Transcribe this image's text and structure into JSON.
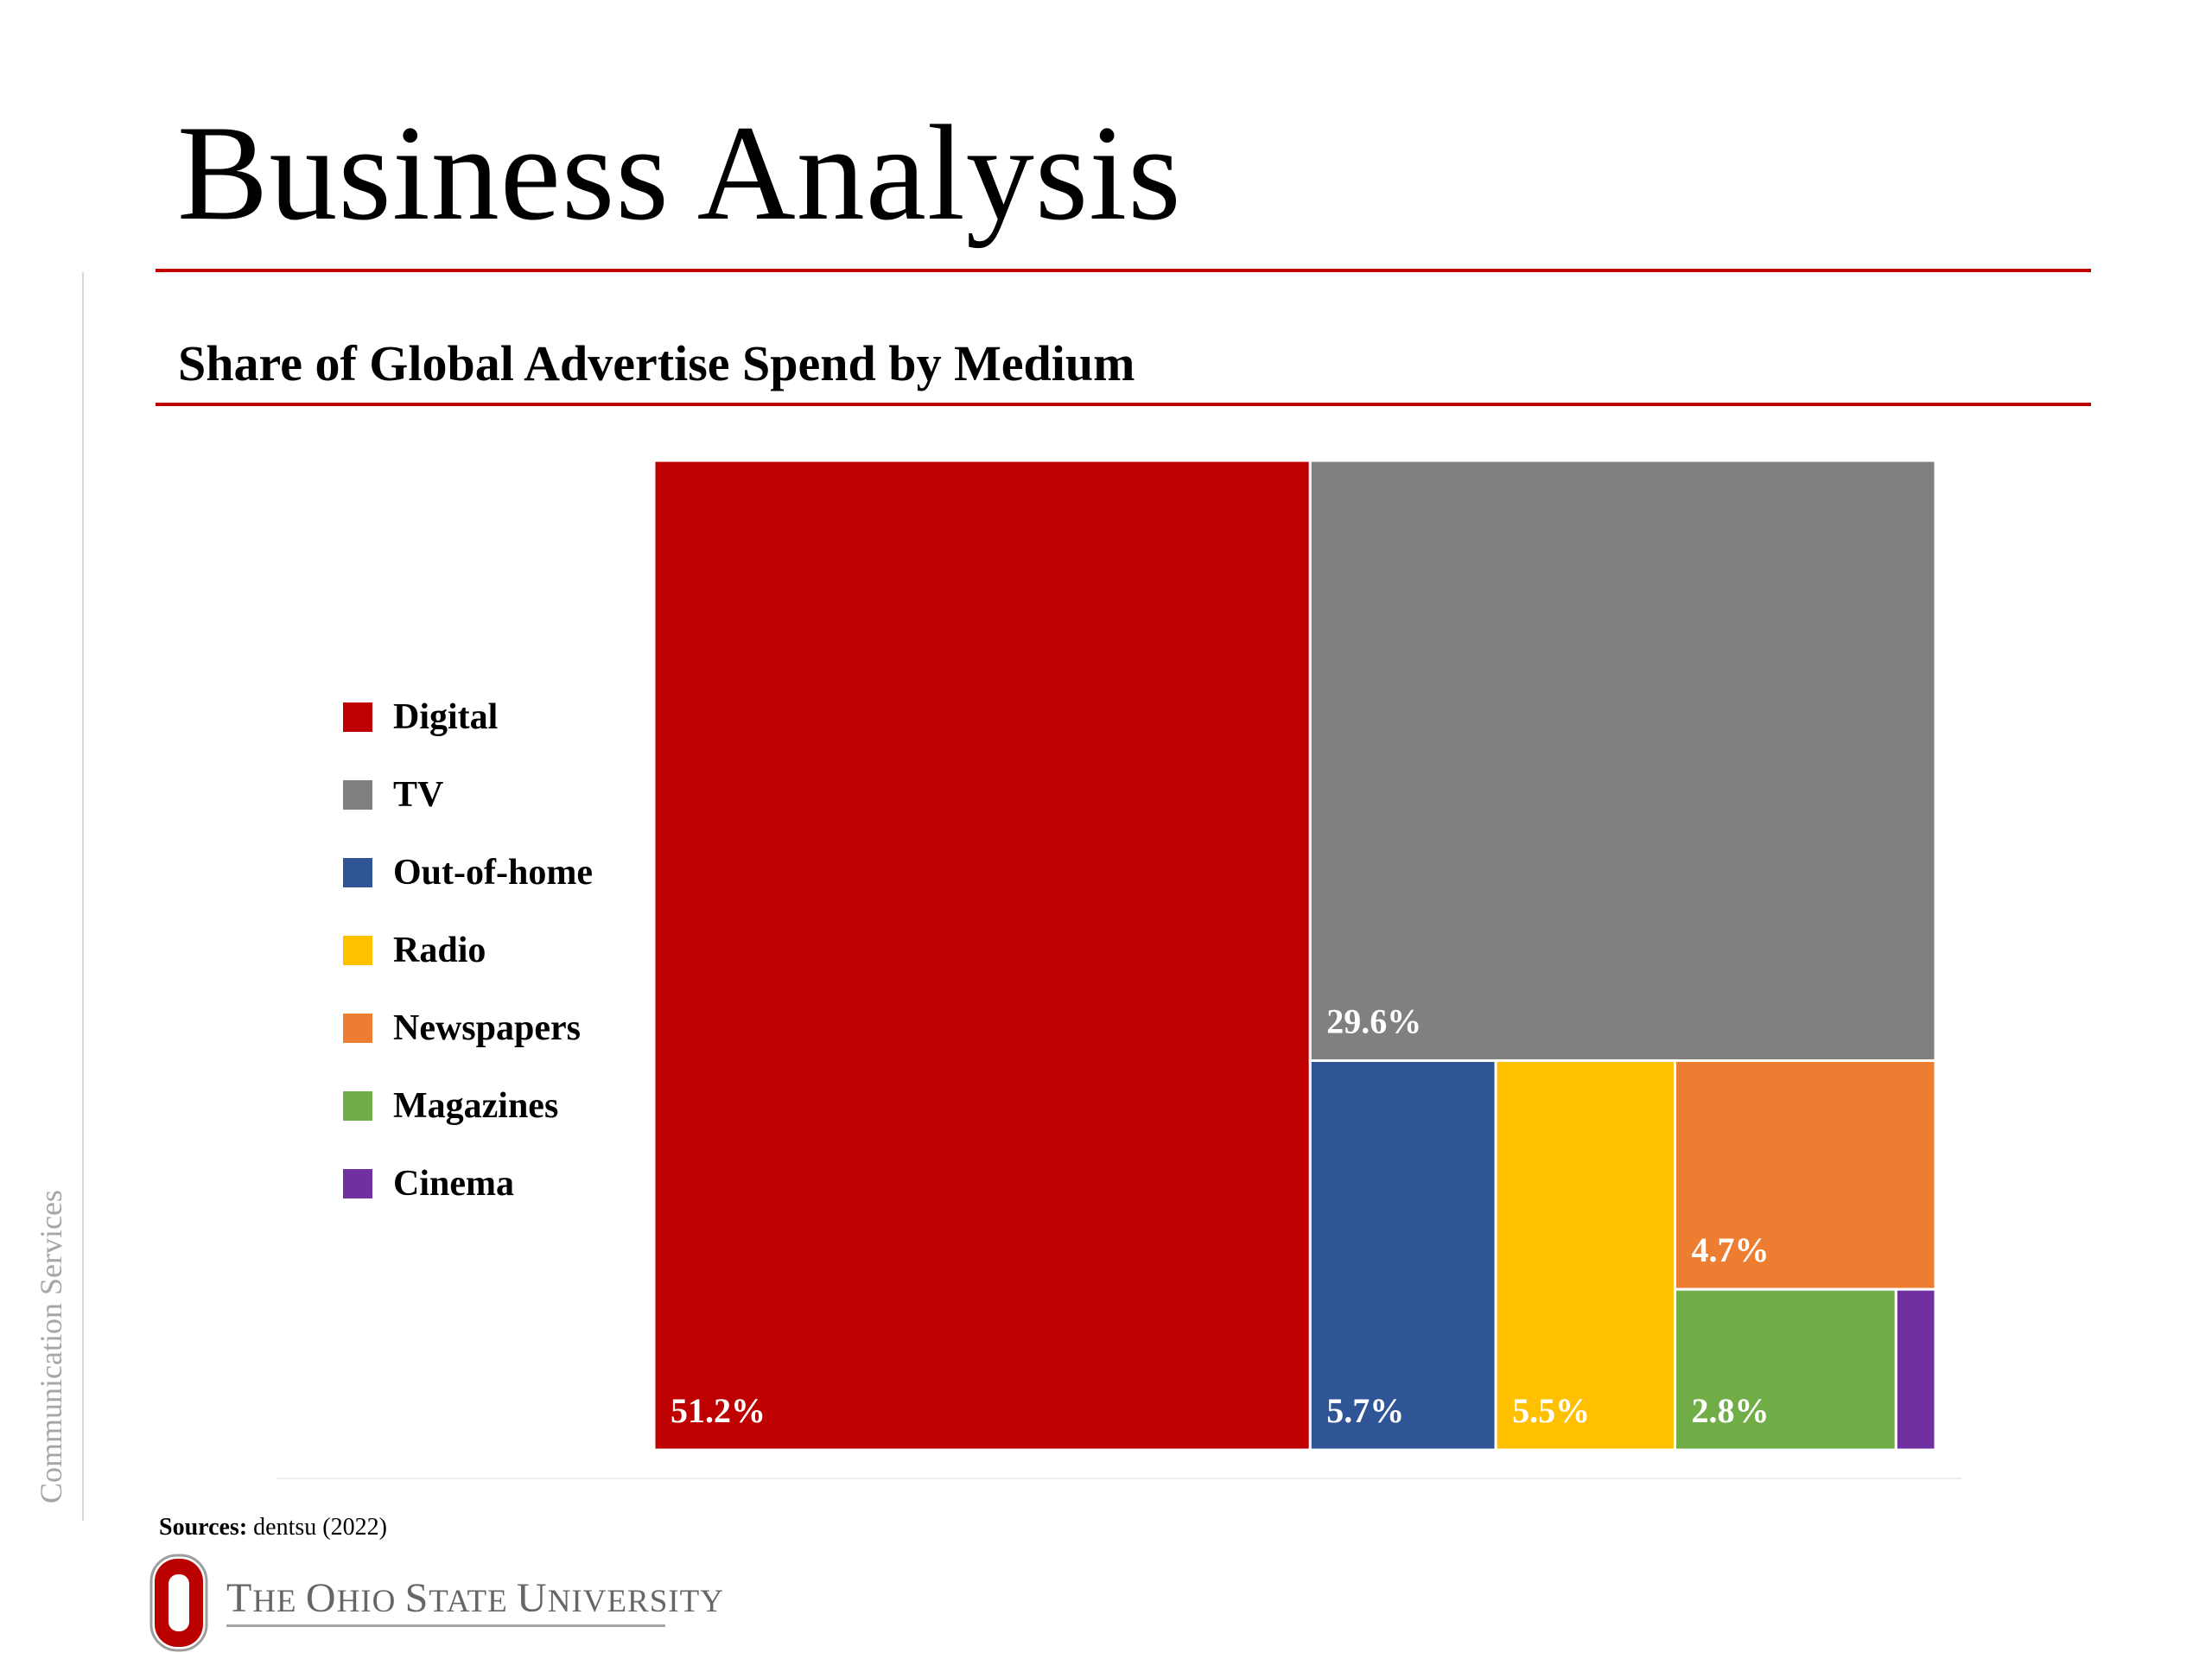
{
  "slide": {
    "title": "Business Analysis",
    "side_label": "Communication Services",
    "source_label": "Sources:",
    "source_text": "dentsu (2022)",
    "logo_text_lead1": "T",
    "logo_text_rest1": "HE ",
    "logo_text_lead2": "O",
    "logo_text_rest2": "HIO ",
    "logo_text_lead3": "S",
    "logo_text_rest3": "TATE ",
    "logo_text_lead4": "U",
    "logo_text_rest4": "NIVERSITY",
    "accent_color": "#c00000"
  },
  "chart_data": {
    "type": "treemap",
    "title": "Share of Global Advertise Spend by Medium",
    "legend_position": "left",
    "series": [
      {
        "name": "Digital",
        "value": 51.2,
        "label": "51.2%",
        "color": "#bf0000"
      },
      {
        "name": "TV",
        "value": 29.6,
        "label": "29.6%",
        "color": "#808080"
      },
      {
        "name": "Out-of-home",
        "value": 5.7,
        "label": "5.7%",
        "color": "#2f5597"
      },
      {
        "name": "Radio",
        "value": 5.5,
        "label": "5.5%",
        "color": "#ffc000"
      },
      {
        "name": "Newspapers",
        "value": 4.7,
        "label": "4.7%",
        "color": "#ed7d31"
      },
      {
        "name": "Magazines",
        "value": 2.8,
        "label": "2.8%",
        "color": "#70ad47"
      },
      {
        "name": "Cinema",
        "value": 0.5,
        "label": "",
        "color": "#7030a0"
      }
    ]
  }
}
